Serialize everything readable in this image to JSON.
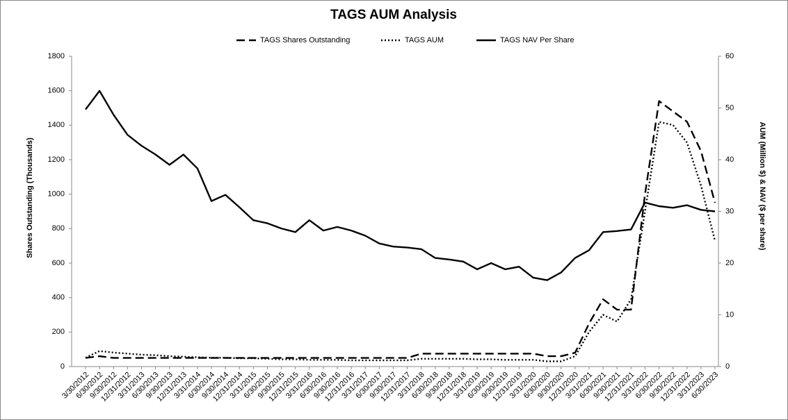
{
  "chart_data": {
    "type": "line",
    "title": "TAGS AUM Analysis",
    "y_label": "Shares Outstanding (Thousands)",
    "y2_label": "AUM (Million $) & NAV ($ per share)",
    "categories": [
      "3/30/2012",
      "6/30/2012",
      "9/30/2012",
      "12/31/2012",
      "3/31/2013",
      "6/30/2013",
      "9/30/2013",
      "12/31/2013",
      "3/31/2014",
      "6/30/2014",
      "9/30/2014",
      "12/31/2014",
      "3/31/2015",
      "6/30/2015",
      "9/30/2015",
      "12/31/2015",
      "3/31/2016",
      "6/30/2016",
      "9/30/2016",
      "12/31/2016",
      "3/31/2017",
      "6/30/2017",
      "9/30/2017",
      "12/31/2017",
      "3/31/2018",
      "6/30/2018",
      "9/30/2018",
      "12/31/2018",
      "3/31/2019",
      "6/30/2019",
      "9/30/2019",
      "12/31/2019",
      "3/31/2020",
      "6/30/2020",
      "9/30/2020",
      "12/31/2020",
      "3/31/2021",
      "6/30/2021",
      "9/30/2021",
      "12/31/2021",
      "3/31/2022",
      "6/30/2022",
      "9/30/2022",
      "12/31/2022",
      "3/31/2023",
      "6/30/2023"
    ],
    "series": [
      {
        "name": "TAGS Shares Outstanding",
        "color": "#000000",
        "dash": "12,6",
        "axis": "y",
        "values": [
          50,
          60,
          50,
          50,
          50,
          50,
          50,
          50,
          50,
          50,
          50,
          50,
          50,
          50,
          50,
          50,
          50,
          50,
          50,
          50,
          50,
          50,
          50,
          50,
          75,
          75,
          75,
          75,
          75,
          75,
          75,
          75,
          75,
          60,
          60,
          80,
          250,
          390,
          330,
          330,
          1000,
          1540,
          1480,
          1420,
          1250,
          950
        ]
      },
      {
        "name": "TAGS AUM",
        "color": "#000000",
        "dash": "2,3",
        "axis": "y2",
        "values": [
          1.7,
          3.0,
          2.7,
          2.5,
          2.3,
          2.2,
          2.0,
          1.9,
          1.8,
          1.7,
          1.7,
          1.6,
          1.6,
          1.5,
          1.4,
          1.4,
          1.3,
          1.3,
          1.3,
          1.2,
          1.2,
          1.2,
          1.2,
          1.2,
          1.5,
          1.5,
          1.5,
          1.5,
          1.4,
          1.4,
          1.3,
          1.3,
          1.3,
          1.0,
          1.0,
          2.0,
          6.7,
          10,
          8.7,
          13,
          30,
          47.3,
          46.7,
          43.3,
          35,
          24.3
        ]
      },
      {
        "name": "TAGS NAV Per Share",
        "color": "#000000",
        "dash": "",
        "axis": "y2",
        "values": [
          49.7,
          53.3,
          48.7,
          44.8,
          42.7,
          41.0,
          39.0,
          41.0,
          38.3,
          32.0,
          33.2,
          30.8,
          28.3,
          27.7,
          26.7,
          26.0,
          28.3,
          26.3,
          27.0,
          26.3,
          25.3,
          23.8,
          23.2,
          23.0,
          22.7,
          21.0,
          20.7,
          20.3,
          18.8,
          20.0,
          18.8,
          19.3,
          17.2,
          16.7,
          18.2,
          21.0,
          22.5,
          26.0,
          26.2,
          26.5,
          31.7,
          31.0,
          30.7,
          31.2,
          30.3,
          30.0
        ]
      }
    ],
    "ylim": [
      0,
      1800
    ],
    "yticks": [
      0,
      200,
      400,
      600,
      800,
      1000,
      1200,
      1400,
      1600,
      1800
    ],
    "y2lim": [
      0,
      60
    ],
    "y2ticks": [
      0,
      10,
      20,
      30,
      40,
      50,
      60
    ]
  }
}
